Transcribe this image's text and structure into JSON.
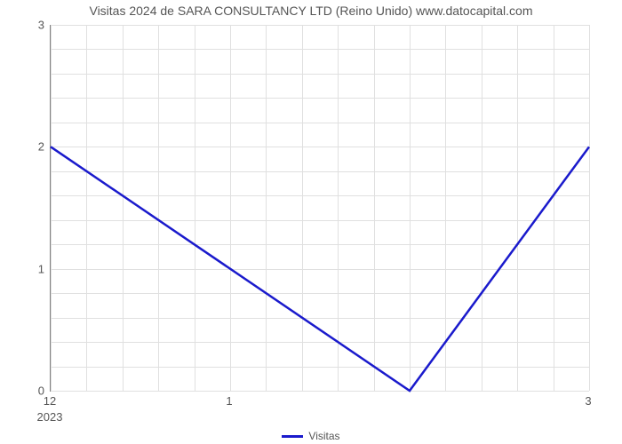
{
  "chart": {
    "type": "line",
    "title": "Visitas 2024 de SARA CONSULTANCY LTD (Reino Unido) www.datocapital.com",
    "title_fontsize": 14,
    "title_color": "#555555",
    "background_color": "#ffffff",
    "grid_color": "#e0e0e0",
    "axis_color": "#808080",
    "ylim": [
      0,
      3
    ],
    "yticks": [
      0,
      1,
      2,
      3
    ],
    "y_minor_step": 0.2,
    "xlim": [
      12,
      15
    ],
    "xticks": [
      12,
      13,
      14,
      15
    ],
    "xtick_labels": [
      "12",
      "1",
      "",
      "3"
    ],
    "xtick_sublabels": [
      "2023",
      "",
      "",
      ""
    ],
    "x_minor_step": 0.2,
    "tick_fontsize": 13,
    "tick_color": "#555555",
    "series": [
      {
        "name": "Visitas",
        "color": "#1a1acc",
        "line_width": 2.5,
        "x": [
          12,
          14,
          15
        ],
        "y": [
          2,
          0,
          2
        ]
      }
    ],
    "legend": {
      "label": "Visitas",
      "fontsize": 12,
      "color": "#555555",
      "swatch_color": "#1a1acc"
    }
  }
}
